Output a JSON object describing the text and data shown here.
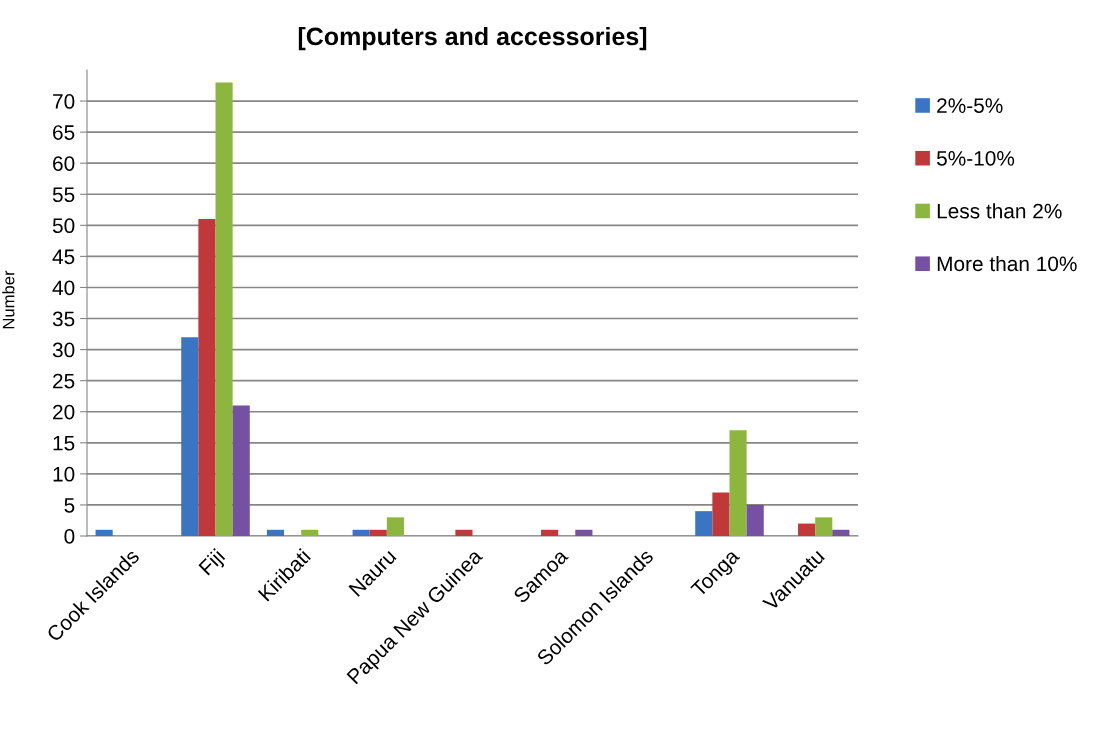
{
  "chart_data": {
    "type": "bar",
    "title": "[Computers and accessories]",
    "ylabel": "Number",
    "categories": [
      "Cook Islands",
      "Fiji",
      "Kiribati",
      "Nauru",
      "Papua New Guinea",
      "Samoa",
      "Solomon Islands",
      "Tonga",
      "Vanuatu"
    ],
    "series": [
      {
        "name": "2%-5%",
        "color": "#3a75c4",
        "values": [
          1,
          32,
          1,
          1,
          0,
          0,
          0,
          4,
          0
        ]
      },
      {
        "name": "5%-10%",
        "color": "#c0383a",
        "values": [
          0,
          51,
          0,
          1,
          1,
          1,
          0,
          7,
          2
        ]
      },
      {
        "name": "Less than 2%",
        "color": "#8db63f",
        "values": [
          0,
          73,
          1,
          3,
          0,
          0,
          0,
          17,
          3
        ]
      },
      {
        "name": "More than 10%",
        "color": "#7550a3",
        "values": [
          0,
          21,
          0,
          0,
          0,
          1,
          0,
          5,
          1
        ]
      }
    ],
    "ylim": [
      0,
      75
    ],
    "yticks": [
      0,
      5,
      10,
      15,
      20,
      25,
      30,
      35,
      40,
      45,
      50,
      55,
      60,
      65,
      70
    ],
    "grid": "y",
    "legend": "right"
  }
}
